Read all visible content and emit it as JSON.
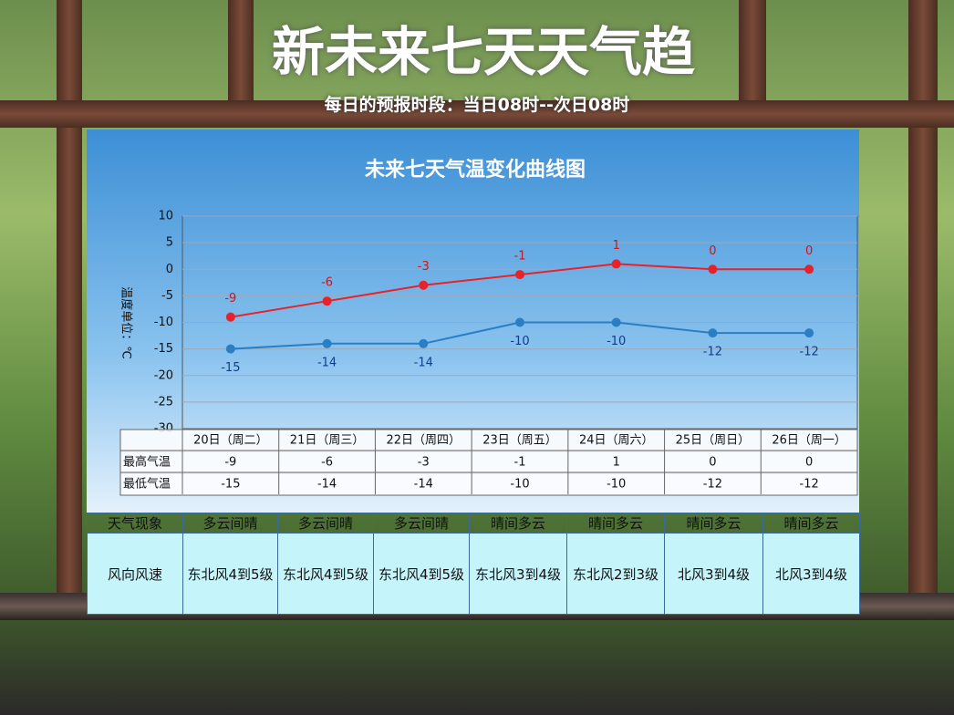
{
  "header": {
    "title": "新未来七天天气趋",
    "subtitle": "每日的预报时段：当日08时--次日08时"
  },
  "chart_data": {
    "type": "line",
    "title": "未来七天气温变化曲线图",
    "y_label": "温度单位：℃",
    "categories": [
      "20日（周二）",
      "21日（周三）",
      "22日（周四）",
      "23日（周五）",
      "24日（周六）",
      "25日（周日）",
      "26日（周一）"
    ],
    "series": [
      {
        "name": "最高气温",
        "color": "#e8222a",
        "values": [
          -9,
          -6,
          -3,
          -1,
          1,
          0,
          0
        ]
      },
      {
        "name": "最低气温",
        "color": "#2a7fc4",
        "values": [
          -15,
          -14,
          -14,
          -10,
          -10,
          -12,
          -12
        ]
      }
    ],
    "ylim": [
      -30,
      10
    ],
    "yticks": [
      -30,
      -25,
      -20,
      -15,
      -10,
      -5,
      0,
      5,
      10
    ],
    "grid": true
  },
  "weather_table": {
    "rows": [
      {
        "label": "天气现象",
        "cells": [
          "多云间晴",
          "多云间晴",
          "多云间晴",
          "晴间多云",
          "晴间多云",
          "晴间多云",
          "晴间多云"
        ]
      },
      {
        "label": "风向风速",
        "cells": [
          "东北风4到5级",
          "东北风4到5级",
          "东北风4到5级",
          "东北风3到4级",
          "东北风2到3级",
          "北风3到4级",
          "北风3到4级"
        ]
      }
    ]
  }
}
